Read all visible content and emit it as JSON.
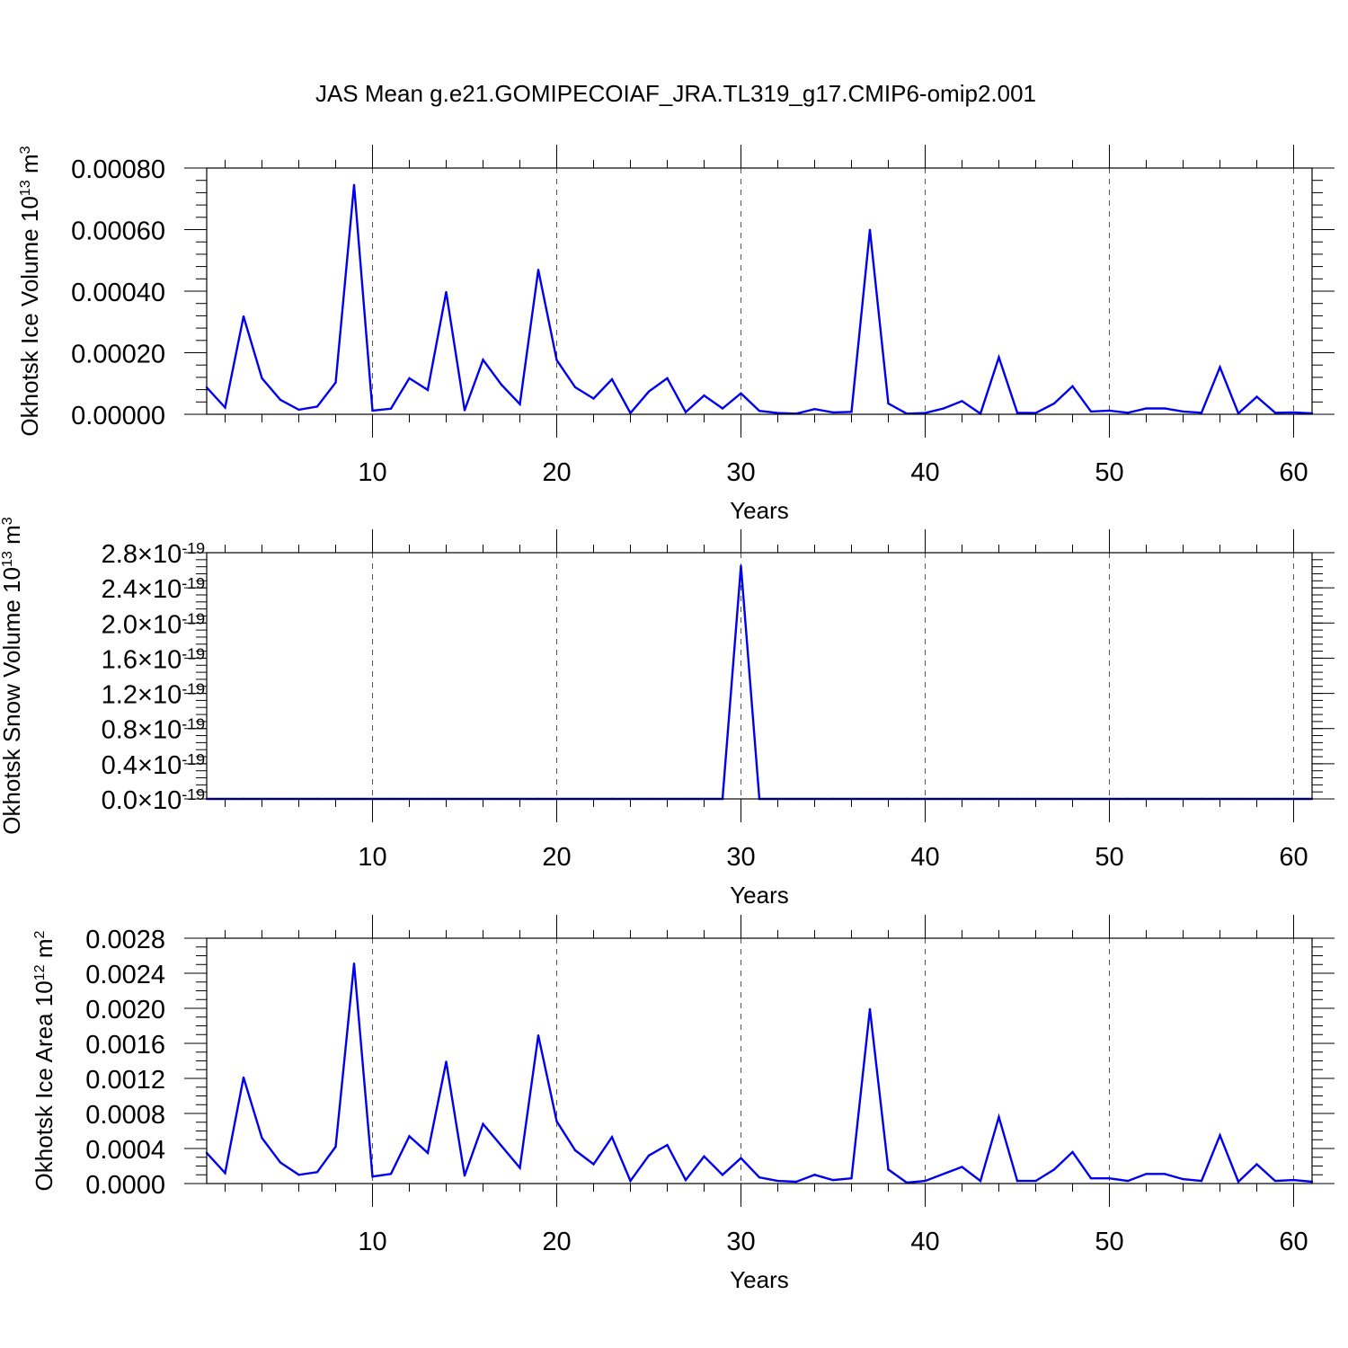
{
  "title": "JAS Mean g.e21.GOMIPECOIAF_JRA.TL319_g17.CMIP6-omip2.001",
  "chart_data": [
    {
      "type": "line",
      "ylabel": "Okhotsk Ice Volume",
      "yunit_base": "10",
      "yunit_exp": "13",
      "yunit_tail": " m",
      "yunit_tail_exp": "3",
      "xlabel": "Years",
      "xlim": [
        1,
        61
      ],
      "ylim": [
        0,
        0.0008
      ],
      "yticks": [
        0,
        0.0002,
        0.0004,
        0.0006,
        0.0008
      ],
      "ytick_labels": [
        "0.00000",
        "0.00020",
        "0.00040",
        "0.00060",
        "0.00080"
      ],
      "yminor_step": 4e-05,
      "xticks": [
        10,
        20,
        30,
        40,
        50,
        60
      ],
      "xtick_labels": [
        "10",
        "20",
        "30",
        "40",
        "50",
        "60"
      ],
      "grid": "dashed-vertical",
      "color": "#0000ee",
      "x": [
        1,
        2,
        3,
        4,
        5,
        6,
        7,
        8,
        9,
        10,
        11,
        12,
        13,
        14,
        15,
        16,
        17,
        18,
        19,
        20,
        21,
        22,
        23,
        24,
        25,
        26,
        27,
        28,
        29,
        30,
        31,
        32,
        33,
        34,
        35,
        36,
        37,
        38,
        39,
        40,
        41,
        42,
        43,
        44,
        45,
        46,
        47,
        48,
        49,
        50,
        51,
        52,
        53,
        54,
        55,
        56,
        57,
        58,
        59,
        60,
        61
      ],
      "values": [
        8.7e-05,
        2.2e-05,
        0.000318,
        0.000117,
        4.7e-05,
        1.5e-05,
        2.5e-05,
        0.000103,
        0.000745,
        1.2e-05,
        1.8e-05,
        0.000117,
        7.9e-05,
        0.000397,
        1.3e-05,
        0.000177,
        9.6e-05,
        3.3e-05,
        0.000469,
        0.000176,
        8.8e-05,
        5.1e-05,
        0.000114,
        4e-06,
        7.4e-05,
        0.000117,
        7e-06,
        6.1e-05,
        1.9e-05,
        6.8e-05,
        1.1e-05,
        4e-06,
        2e-06,
        1.7e-05,
        6e-06,
        8e-06,
        0.000599,
        3.5e-05,
        2e-06,
        4e-06,
        1.9e-05,
        4.3e-05,
        2e-06,
        0.000185,
        5e-06,
        4e-06,
        3.5e-05,
        9.1e-05,
        9e-06,
        1.2e-05,
        5e-06,
        1.9e-05,
        1.9e-05,
        9e-06,
        5e-06,
        0.000153,
        3e-06,
        5.7e-05,
        5e-06,
        6e-06,
        3e-06
      ]
    },
    {
      "type": "line",
      "ylabel": "Okhotsk Snow Volume",
      "yunit_base": "10",
      "yunit_exp": "13",
      "yunit_tail": " m",
      "yunit_tail_exp": "3",
      "xlabel": "Years",
      "xlim": [
        1,
        61
      ],
      "ylim": [
        0,
        2.8e-19
      ],
      "yticks": [
        0,
        4e-20,
        8e-20,
        1.2e-19,
        1.6e-19,
        2e-19,
        2.4e-19,
        2.8e-19
      ],
      "ytick_labels": [
        "0.0",
        "0.4",
        "0.8",
        "1.2",
        "1.6",
        "2.0",
        "2.4",
        "2.8"
      ],
      "ytick_suffix_base": "10",
      "ytick_suffix_exp": "-19",
      "yminor_step": 8e-21,
      "xticks": [
        10,
        20,
        30,
        40,
        50,
        60
      ],
      "xtick_labels": [
        "10",
        "20",
        "30",
        "40",
        "50",
        "60"
      ],
      "grid": "dashed-vertical",
      "color": "#0000ee",
      "x": [
        1,
        2,
        3,
        4,
        5,
        6,
        7,
        8,
        9,
        10,
        11,
        12,
        13,
        14,
        15,
        16,
        17,
        18,
        19,
        20,
        21,
        22,
        23,
        24,
        25,
        26,
        27,
        28,
        29,
        30,
        31,
        32,
        33,
        34,
        35,
        36,
        37,
        38,
        39,
        40,
        41,
        42,
        43,
        44,
        45,
        46,
        47,
        48,
        49,
        50,
        51,
        52,
        53,
        54,
        55,
        56,
        57,
        58,
        59,
        60,
        61
      ],
      "values": [
        0,
        0,
        0,
        0,
        0,
        0,
        0,
        0,
        0,
        0,
        0,
        0,
        0,
        0,
        0,
        0,
        0,
        0,
        0,
        0,
        0,
        0,
        0,
        0,
        0,
        0,
        0,
        0,
        0,
        2.65e-19,
        0,
        0,
        0,
        0,
        0,
        0,
        0,
        0,
        0,
        0,
        0,
        0,
        0,
        0,
        0,
        0,
        0,
        0,
        0,
        0,
        0,
        0,
        0,
        0,
        0,
        0,
        0,
        0,
        0,
        0,
        0
      ]
    },
    {
      "type": "line",
      "ylabel": "Okhotsk Ice Area",
      "yunit_base": "10",
      "yunit_exp": "12",
      "yunit_tail": " m",
      "yunit_tail_exp": "2",
      "xlabel": "Years",
      "xlim": [
        1,
        61
      ],
      "ylim": [
        0,
        0.0028
      ],
      "yticks": [
        0,
        0.0004,
        0.0008,
        0.0012,
        0.0016,
        0.002,
        0.0024,
        0.0028
      ],
      "ytick_labels": [
        "0.0000",
        "0.0004",
        "0.0008",
        "0.0012",
        "0.0016",
        "0.0020",
        "0.0024",
        "0.0028"
      ],
      "yminor_step": 0.0001,
      "xticks": [
        10,
        20,
        30,
        40,
        50,
        60
      ],
      "xtick_labels": [
        "10",
        "20",
        "30",
        "40",
        "50",
        "60"
      ],
      "grid": "dashed-vertical",
      "color": "#0000ee",
      "x": [
        1,
        2,
        3,
        4,
        5,
        6,
        7,
        8,
        9,
        10,
        11,
        12,
        13,
        14,
        15,
        16,
        17,
        18,
        19,
        20,
        21,
        22,
        23,
        24,
        25,
        26,
        27,
        28,
        29,
        30,
        31,
        32,
        33,
        34,
        35,
        36,
        37,
        38,
        39,
        40,
        41,
        42,
        43,
        44,
        45,
        46,
        47,
        48,
        49,
        50,
        51,
        52,
        53,
        54,
        55,
        56,
        57,
        58,
        59,
        60,
        61
      ],
      "values": [
        0.00035,
        0.00012,
        0.00121,
        0.00052,
        0.00024,
        0.0001,
        0.00013,
        0.00042,
        0.00251,
        8e-05,
        0.00011,
        0.00054,
        0.00035,
        0.00139,
        9e-05,
        0.00068,
        0.00043,
        0.00018,
        0.00169,
        0.00071,
        0.00038,
        0.00022,
        0.00053,
        3e-05,
        0.00032,
        0.00044,
        4e-05,
        0.00031,
        0.0001,
        0.00029,
        7e-05,
        3e-05,
        2e-05,
        0.0001,
        4e-05,
        6e-05,
        0.00199,
        0.00016,
        1e-05,
        3e-05,
        0.00011,
        0.00019,
        3e-05,
        0.00076,
        3e-05,
        3e-05,
        0.00016,
        0.00036,
        6e-05,
        6e-05,
        3e-05,
        0.00011,
        0.00011,
        5e-05,
        3e-05,
        0.00055,
        2e-05,
        0.00022,
        3e-05,
        4e-05,
        2e-05
      ]
    }
  ]
}
